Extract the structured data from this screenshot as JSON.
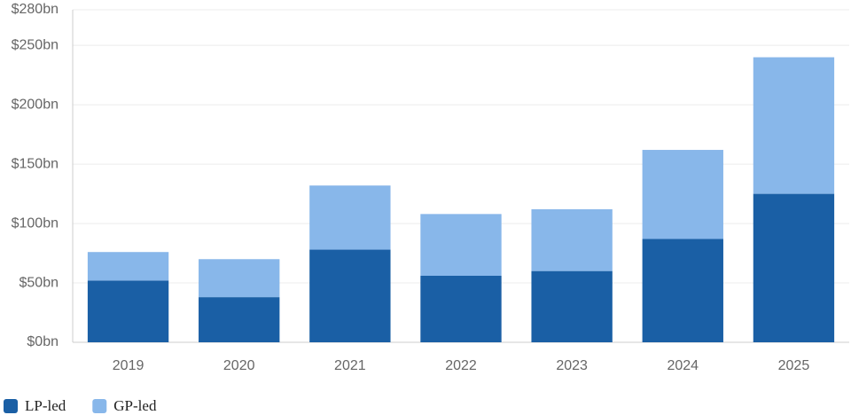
{
  "chart_data": {
    "type": "stacked-bar",
    "categories": [
      "2019",
      "2020",
      "2021",
      "2022",
      "2023",
      "2024",
      "2025"
    ],
    "series": [
      {
        "name": "LP-led",
        "color": "#1a5fa5",
        "values": [
          52,
          38,
          78,
          56,
          60,
          87,
          125
        ]
      },
      {
        "name": "GP-led",
        "color": "#88b7ea",
        "values": [
          24,
          32,
          54,
          52,
          52,
          75,
          115
        ]
      }
    ],
    "ylim": [
      0,
      280
    ],
    "yticks": [
      {
        "value": 0,
        "label": "$0bn"
      },
      {
        "value": 50,
        "label": "$50bn"
      },
      {
        "value": 100,
        "label": "$100bn"
      },
      {
        "value": 150,
        "label": "$150bn"
      },
      {
        "value": 200,
        "label": "$200bn"
      },
      {
        "value": 250,
        "label": "$250bn"
      },
      {
        "value": 280,
        "label": "$280bn"
      }
    ],
    "grid": true,
    "legend": "bottom-left"
  }
}
